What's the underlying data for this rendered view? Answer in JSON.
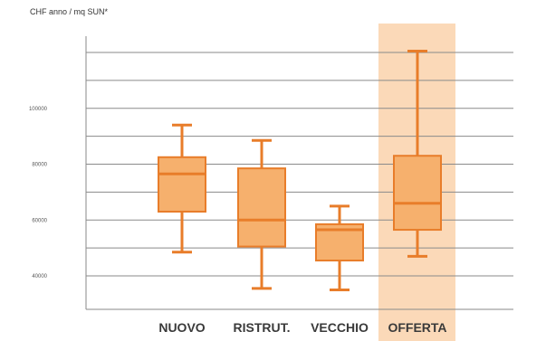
{
  "chart_data": {
    "type": "boxplot",
    "ylabel": "CHF anno / mq SUN*",
    "ylim": [
      35000,
      129000
    ],
    "yticks": [
      {
        "value": 40000,
        "label": "40000"
      },
      {
        "value": 60000,
        "label": "60000"
      },
      {
        "value": 80000,
        "label": "80000"
      },
      {
        "value": 100000,
        "label": "100000"
      }
    ],
    "gridlines": [
      40000,
      50000,
      60000,
      70000,
      80000,
      90000,
      100000,
      110000,
      120000
    ],
    "grid": true,
    "highlight_category": "OFFERTA",
    "colors": {
      "box_fill": "#f6b06d",
      "box_stroke": "#e87d2a",
      "highlight": "#fbd9b8",
      "grid": "#8a8a8a"
    },
    "categories": [
      "NUOVO",
      "RISTRUT.",
      "VECCHIO",
      "OFFERTA"
    ],
    "boxes": [
      {
        "category": "NUOVO",
        "min": 48500,
        "q1": 63000,
        "median": 76500,
        "q3": 82500,
        "max": 94000
      },
      {
        "category": "RISTRUT.",
        "min": 35500,
        "q1": 50500,
        "median": 60000,
        "q3": 78500,
        "max": 88500
      },
      {
        "category": "VECCHIO",
        "min": 35000,
        "q1": 45500,
        "median": 56500,
        "q3": 58500,
        "max": 65000
      },
      {
        "category": "OFFERTA",
        "min": 47000,
        "q1": 56500,
        "median": 66000,
        "q3": 83000,
        "max": 120500
      }
    ]
  }
}
